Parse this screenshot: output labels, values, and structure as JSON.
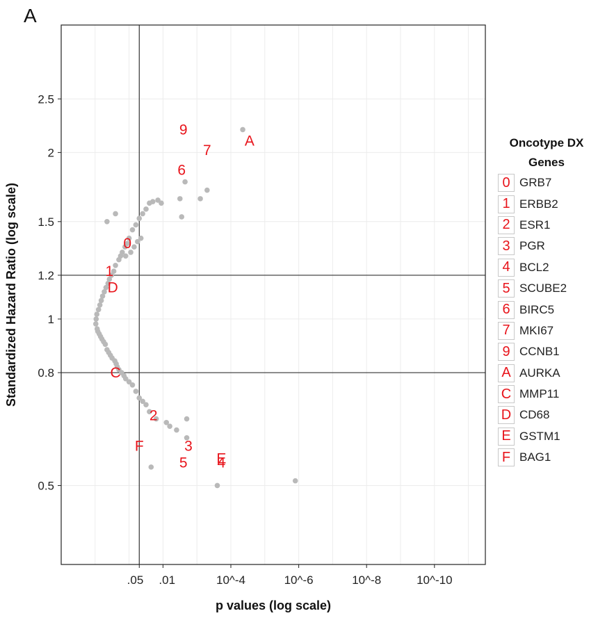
{
  "panel_label": "A",
  "chart_data": {
    "type": "scatter",
    "xlabel": "p values (log scale)",
    "ylabel": "Standardized Hazard Ratio (log scale)",
    "x_scale": "-log10(p)",
    "y_scale": "log",
    "xlim": [
      -1.0,
      11.5
    ],
    "ylim": [
      0.36,
      3.4
    ],
    "x_ticks": [
      {
        "value": 1.301,
        "label": ".05"
      },
      {
        "value": 2,
        "label": ".01"
      },
      {
        "value": 4,
        "label": "10^-4"
      },
      {
        "value": 6,
        "label": "10^-6"
      },
      {
        "value": 8,
        "label": "10^-8"
      },
      {
        "value": 10,
        "label": "10^-10"
      }
    ],
    "y_ticks": [
      {
        "value": 0.5,
        "label": "0.5"
      },
      {
        "value": 0.8,
        "label": "0.8"
      },
      {
        "value": 1,
        "label": "1"
      },
      {
        "value": 1.2,
        "label": "1.2"
      },
      {
        "value": 1.5,
        "label": "1.5"
      },
      {
        "value": 2,
        "label": "2"
      },
      {
        "value": 2.5,
        "label": "2.5"
      }
    ],
    "reference_lines": {
      "x": [
        1.301
      ],
      "y": [
        0.8,
        1.2
      ]
    },
    "grid": true,
    "point_color": "#b9b9b9",
    "label_color": "#e8141b",
    "points": [
      {
        "x": 0.02,
        "y": 0.98
      },
      {
        "x": 0.03,
        "y": 1.0
      },
      {
        "x": 0.05,
        "y": 1.02
      },
      {
        "x": 0.06,
        "y": 0.96
      },
      {
        "x": 0.08,
        "y": 0.95
      },
      {
        "x": 0.1,
        "y": 1.04
      },
      {
        "x": 0.12,
        "y": 0.94
      },
      {
        "x": 0.14,
        "y": 1.06
      },
      {
        "x": 0.16,
        "y": 0.93
      },
      {
        "x": 0.18,
        "y": 1.08
      },
      {
        "x": 0.2,
        "y": 0.92
      },
      {
        "x": 0.22,
        "y": 1.1
      },
      {
        "x": 0.25,
        "y": 0.91
      },
      {
        "x": 0.27,
        "y": 1.12
      },
      {
        "x": 0.3,
        "y": 0.9
      },
      {
        "x": 0.32,
        "y": 1.14
      },
      {
        "x": 0.35,
        "y": 0.88
      },
      {
        "x": 0.38,
        "y": 1.16
      },
      {
        "x": 0.4,
        "y": 0.87
      },
      {
        "x": 0.42,
        "y": 1.18
      },
      {
        "x": 0.45,
        "y": 0.86
      },
      {
        "x": 0.48,
        "y": 1.2
      },
      {
        "x": 0.5,
        "y": 0.85
      },
      {
        "x": 0.55,
        "y": 1.22
      },
      {
        "x": 0.58,
        "y": 0.84
      },
      {
        "x": 0.6,
        "y": 1.25
      },
      {
        "x": 0.62,
        "y": 0.83
      },
      {
        "x": 0.65,
        "y": 0.82
      },
      {
        "x": 0.7,
        "y": 0.81
      },
      {
        "x": 0.7,
        "y": 1.28
      },
      {
        "x": 0.75,
        "y": 1.3
      },
      {
        "x": 0.78,
        "y": 0.8
      },
      {
        "x": 0.8,
        "y": 1.32
      },
      {
        "x": 0.85,
        "y": 0.79
      },
      {
        "x": 0.88,
        "y": 1.35
      },
      {
        "x": 0.9,
        "y": 0.78
      },
      {
        "x": 0.95,
        "y": 1.37
      },
      {
        "x": 1.0,
        "y": 0.77
      },
      {
        "x": 1.0,
        "y": 1.4
      },
      {
        "x": 1.05,
        "y": 1.32
      },
      {
        "x": 1.1,
        "y": 0.76
      },
      {
        "x": 1.1,
        "y": 1.45
      },
      {
        "x": 1.15,
        "y": 1.35
      },
      {
        "x": 1.2,
        "y": 0.74
      },
      {
        "x": 1.2,
        "y": 1.48
      },
      {
        "x": 1.25,
        "y": 1.38
      },
      {
        "x": 1.3,
        "y": 0.72
      },
      {
        "x": 1.3,
        "y": 1.52
      },
      {
        "x": 1.35,
        "y": 1.4
      },
      {
        "x": 1.4,
        "y": 1.55
      },
      {
        "x": 1.4,
        "y": 0.71
      },
      {
        "x": 1.5,
        "y": 1.58
      },
      {
        "x": 1.5,
        "y": 0.7
      },
      {
        "x": 1.6,
        "y": 1.62
      },
      {
        "x": 1.6,
        "y": 0.68
      },
      {
        "x": 1.7,
        "y": 1.63
      },
      {
        "x": 1.8,
        "y": 0.66
      },
      {
        "x": 1.85,
        "y": 1.64
      },
      {
        "x": 1.95,
        "y": 1.62
      },
      {
        "x": 2.1,
        "y": 0.65
      },
      {
        "x": 2.2,
        "y": 0.64
      },
      {
        "x": 2.4,
        "y": 0.63
      },
      {
        "x": 2.5,
        "y": 1.65
      },
      {
        "x": 2.55,
        "y": 1.53
      },
      {
        "x": 2.65,
        "y": 1.77
      },
      {
        "x": 2.7,
        "y": 0.61
      },
      {
        "x": 2.7,
        "y": 0.66
      },
      {
        "x": 3.1,
        "y": 1.65
      },
      {
        "x": 3.3,
        "y": 1.71
      },
      {
        "x": 3.6,
        "y": 0.5
      },
      {
        "x": 4.35,
        "y": 2.2
      },
      {
        "x": 5.9,
        "y": 0.51
      },
      {
        "x": 1.65,
        "y": 0.54
      },
      {
        "x": 0.35,
        "y": 1.5
      },
      {
        "x": 0.6,
        "y": 1.55
      },
      {
        "x": 0.9,
        "y": 1.3
      }
    ],
    "labels": [
      {
        "text": "0",
        "x": 0.95,
        "y": 1.37
      },
      {
        "text": "1",
        "x": 0.42,
        "y": 1.22
      },
      {
        "text": "D",
        "x": 0.52,
        "y": 1.14
      },
      {
        "text": "C",
        "x": 0.6,
        "y": 0.8
      },
      {
        "text": "2",
        "x": 1.72,
        "y": 0.67
      },
      {
        "text": "3",
        "x": 2.75,
        "y": 0.59
      },
      {
        "text": "5",
        "x": 2.6,
        "y": 0.55
      },
      {
        "text": "F",
        "x": 1.3,
        "y": 0.59
      },
      {
        "text": "E",
        "x": 3.72,
        "y": 0.56
      },
      {
        "text": "4",
        "x": 3.72,
        "y": 0.55
      },
      {
        "text": "6",
        "x": 2.55,
        "y": 1.86
      },
      {
        "text": "7",
        "x": 3.3,
        "y": 2.02
      },
      {
        "text": "9",
        "x": 2.6,
        "y": 2.2
      },
      {
        "text": "A",
        "x": 4.55,
        "y": 2.1
      }
    ],
    "legend": {
      "title": "Oncotype DX Genes",
      "position": "right",
      "entries": [
        {
          "key": "0",
          "name": "GRB7"
        },
        {
          "key": "1",
          "name": "ERBB2"
        },
        {
          "key": "2",
          "name": "ESR1"
        },
        {
          "key": "3",
          "name": "PGR"
        },
        {
          "key": "4",
          "name": "BCL2"
        },
        {
          "key": "5",
          "name": "SCUBE2"
        },
        {
          "key": "6",
          "name": "BIRC5"
        },
        {
          "key": "7",
          "name": "MKI67"
        },
        {
          "key": "9",
          "name": "CCNB1"
        },
        {
          "key": "A",
          "name": "AURKA"
        },
        {
          "key": "C",
          "name": "MMP11"
        },
        {
          "key": "D",
          "name": "CD68"
        },
        {
          "key": "E",
          "name": "GSTM1"
        },
        {
          "key": "F",
          "name": "BAG1"
        }
      ]
    }
  }
}
